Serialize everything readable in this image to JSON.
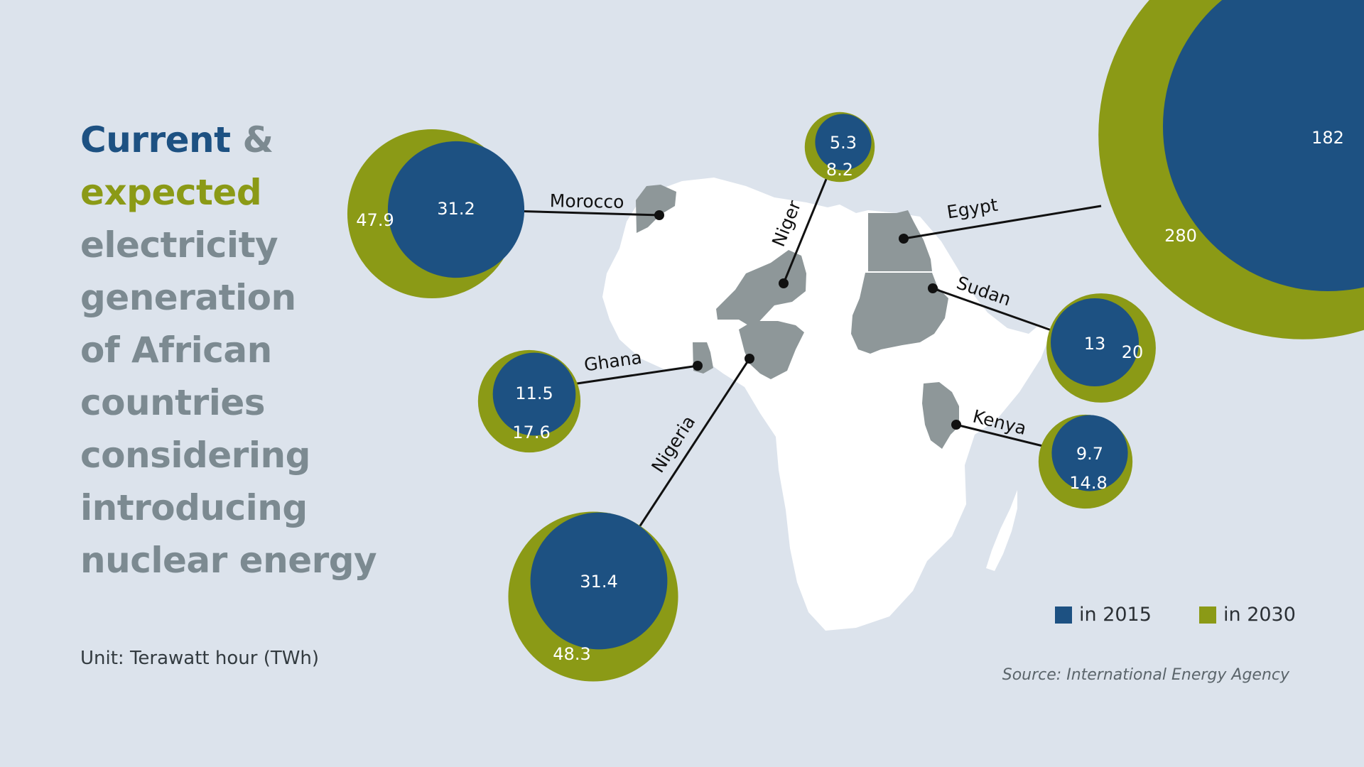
{
  "title": {
    "part1": "Current",
    "part2": "&",
    "part3": "expected",
    "rest": [
      "electricity",
      "generation",
      "of African",
      "countries",
      "considering",
      "introducing",
      "nuclear energy"
    ]
  },
  "unit_label": "Unit: Terawatt hour (TWh)",
  "source_label": "Source: International Energy Agency",
  "legend": [
    {
      "label": "in 2015",
      "color": "#1d5182"
    },
    {
      "label": "in 2030",
      "color": "#8b9a16"
    }
  ],
  "colors": {
    "current_2015": "#1d5182",
    "expected_2030": "#8b9a16",
    "map_land": "#ffffff",
    "highlight_country": "#8e9799",
    "background": "#dce3ec"
  },
  "chart_data": {
    "type": "bubble",
    "title": "Current & expected electricity generation of African countries considering introducing nuclear energy",
    "unit": "Terawatt hour (TWh)",
    "series": [
      {
        "name": "in 2015",
        "values": [
          31.2,
          5.3,
          182,
          11.5,
          13,
          9.7,
          31.4
        ]
      },
      {
        "name": "in 2030",
        "values": [
          47.9,
          8.2,
          280,
          17.6,
          20,
          14.8,
          48.3
        ]
      }
    ],
    "categories": [
      "Morocco",
      "Niger",
      "Egypt",
      "Ghana",
      "Sudan",
      "Kenya",
      "Nigeria"
    ]
  }
}
